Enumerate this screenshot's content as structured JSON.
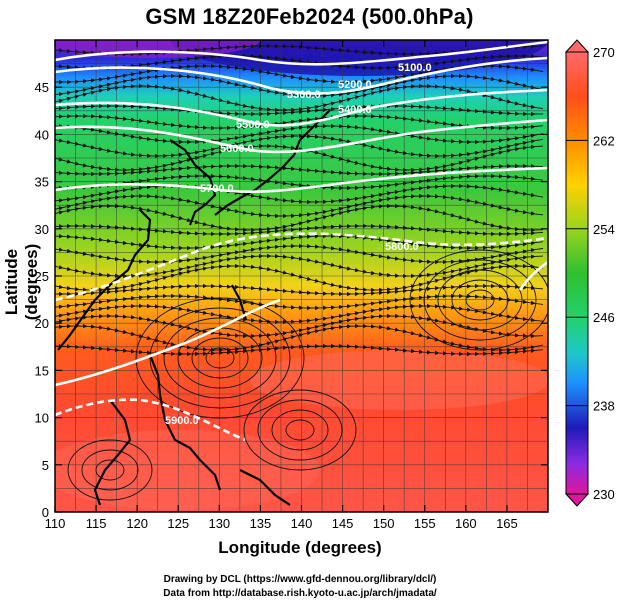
{
  "title": "GSM 18Z20Feb2024 (500.0hPa)",
  "x_axis": {
    "label": "Longitude (degrees)",
    "ticks": [
      110,
      115,
      120,
      125,
      130,
      135,
      140,
      145,
      150,
      155,
      160,
      165
    ],
    "range": [
      110,
      170
    ]
  },
  "y_axis": {
    "label": "Latitude  (degrees)",
    "ticks": [
      0,
      5,
      10,
      15,
      20,
      25,
      30,
      35,
      40,
      45
    ],
    "range": [
      0,
      50
    ]
  },
  "colorbar": {
    "ticks": [
      270,
      262,
      254,
      246,
      238,
      230
    ],
    "range": [
      230,
      270
    ],
    "colors": [
      "#e0169b",
      "#8a2be2",
      "#1f1ab8",
      "#1e90ff",
      "#1ec8c8",
      "#23d16a",
      "#2fc02f",
      "#9ad41e",
      "#ffd200",
      "#ff8c00",
      "#ff4e1a",
      "#ff6a6a"
    ]
  },
  "contour_labels": [
    "5100.0",
    "5200.0",
    "5300.0",
    "5400.0",
    "5500.0",
    "5600.0",
    "5700.0",
    "5800.0",
    "5900.0"
  ],
  "credits": {
    "line1": "Drawing by DCL (https://www.gfd-dennou.org/library/dcl/)",
    "line2": "Data from http://database.rish.kyoto-u.ac.jp/arch/jmadata/"
  }
}
